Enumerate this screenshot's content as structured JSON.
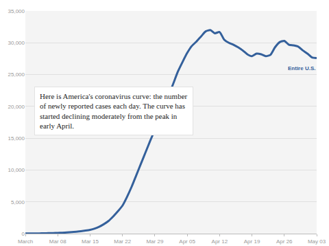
{
  "chart_data": {
    "type": "line",
    "annotation": "Here is America's coronavirus curve: the number of newly reported cases each day. The curve has started declining moderately from the peak in early April.",
    "categories": [
      "March",
      null,
      null,
      null,
      null,
      null,
      null,
      "Mar 08",
      null,
      null,
      null,
      null,
      null,
      null,
      "Mar 15",
      null,
      null,
      null,
      null,
      null,
      null,
      "Mar 22",
      null,
      null,
      null,
      null,
      null,
      null,
      "Mar 29",
      null,
      null,
      null,
      null,
      null,
      null,
      "Apr 05",
      null,
      null,
      null,
      null,
      null,
      null,
      "Apr 12",
      null,
      null,
      null,
      null,
      null,
      null,
      "Apr 19",
      null,
      null,
      null,
      null,
      null,
      null,
      "Apr 26",
      null,
      null,
      null,
      null,
      null,
      null,
      "May 03"
    ],
    "series": [
      {
        "name": "Entire U.S.",
        "color": "#34609b",
        "values": [
          20,
          25,
          30,
          40,
          50,
          70,
          90,
          110,
          140,
          180,
          230,
          300,
          380,
          480,
          600,
          800,
          1100,
          1500,
          2000,
          2700,
          3500,
          4400,
          5800,
          7400,
          9200,
          11000,
          12800,
          14600,
          16300,
          18000,
          19800,
          21700,
          23600,
          25500,
          27000,
          28400,
          29500,
          30200,
          31000,
          31800,
          32000,
          31500,
          31700,
          30500,
          30000,
          29700,
          29300,
          28800,
          28200,
          27900,
          28300,
          28200,
          27900,
          28100,
          29300,
          30100,
          30300,
          29700,
          29600,
          29400,
          28800,
          28300,
          27700,
          27600
        ]
      }
    ],
    "ylim": [
      0,
      35000
    ],
    "yticks": [
      0,
      {
        "value": 5000,
        "label": "5,000"
      },
      {
        "value": 10000,
        "label": "10,000"
      },
      {
        "value": 15000,
        "label": "15,000"
      },
      {
        "value": 20000,
        "label": "20,000"
      },
      {
        "value": 25000,
        "label": "25,000"
      },
      {
        "value": 30000,
        "label": "30,000"
      },
      {
        "value": 35000,
        "label": "35,000"
      }
    ],
    "grid": true
  }
}
